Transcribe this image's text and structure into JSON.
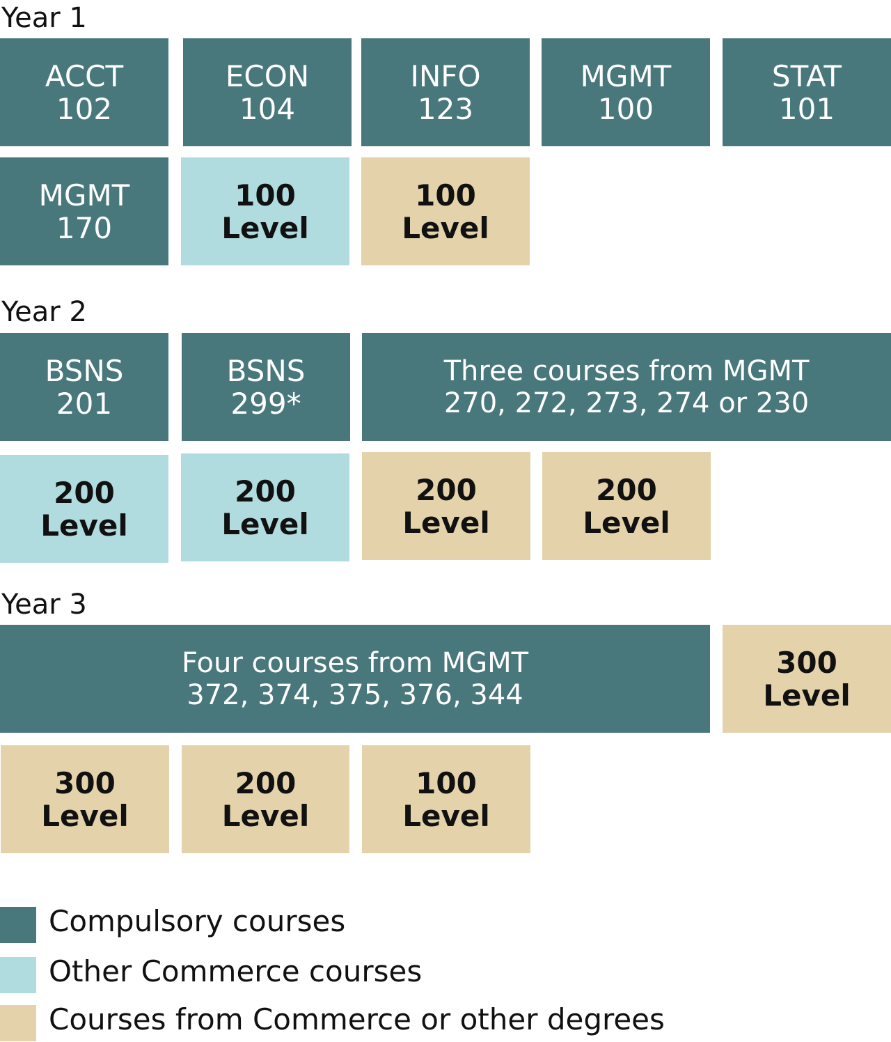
{
  "colors": {
    "compulsory": "#48787c",
    "commerce": "#b1dcdf",
    "other": "#e4d3aa"
  },
  "years": [
    {
      "label": "Year 1",
      "rows": [
        [
          {
            "type": "compulsory",
            "line1": "ACCT",
            "line2": "102"
          },
          {
            "type": "compulsory",
            "line1": "ECON",
            "line2": "104"
          },
          {
            "type": "compulsory",
            "line1": "INFO",
            "line2": "123"
          },
          {
            "type": "compulsory",
            "line1": "MGMT",
            "line2": "100"
          },
          {
            "type": "compulsory",
            "line1": "STAT",
            "line2": "101"
          }
        ],
        [
          {
            "type": "compulsory",
            "line1": "MGMT",
            "line2": "170"
          },
          {
            "type": "commerce",
            "line1": "100",
            "line2": "Level"
          },
          {
            "type": "other",
            "line1": "100",
            "line2": "Level"
          }
        ]
      ]
    },
    {
      "label": "Year 2",
      "rows": [
        [
          {
            "type": "compulsory",
            "line1": "BSNS",
            "line2": "201"
          },
          {
            "type": "compulsory",
            "line1": "BSNS",
            "line2": "299*"
          },
          {
            "type": "compulsory",
            "line1": "Three courses from MGMT",
            "line2": "270, 272, 273, 274 or 230"
          }
        ],
        [
          {
            "type": "commerce",
            "line1": "200",
            "line2": "Level"
          },
          {
            "type": "commerce",
            "line1": "200",
            "line2": "Level"
          },
          {
            "type": "other",
            "line1": "200",
            "line2": "Level"
          },
          {
            "type": "other",
            "line1": "200",
            "line2": "Level"
          }
        ]
      ]
    },
    {
      "label": "Year 3",
      "rows": [
        [
          {
            "type": "compulsory",
            "line1": "Four courses from MGMT",
            "line2": "372, 374, 375, 376, 344"
          },
          {
            "type": "other",
            "line1": "300",
            "line2": "Level"
          }
        ],
        [
          {
            "type": "other",
            "line1": "300",
            "line2": "Level"
          },
          {
            "type": "other",
            "line1": "200",
            "line2": "Level"
          },
          {
            "type": "other",
            "line1": "100",
            "line2": "Level"
          }
        ]
      ]
    }
  ],
  "legend": [
    {
      "type": "compulsory",
      "label": "Compulsory courses"
    },
    {
      "type": "commerce",
      "label": "Other Commerce courses"
    },
    {
      "type": "other",
      "label": "Courses from Commerce or other degrees"
    }
  ]
}
